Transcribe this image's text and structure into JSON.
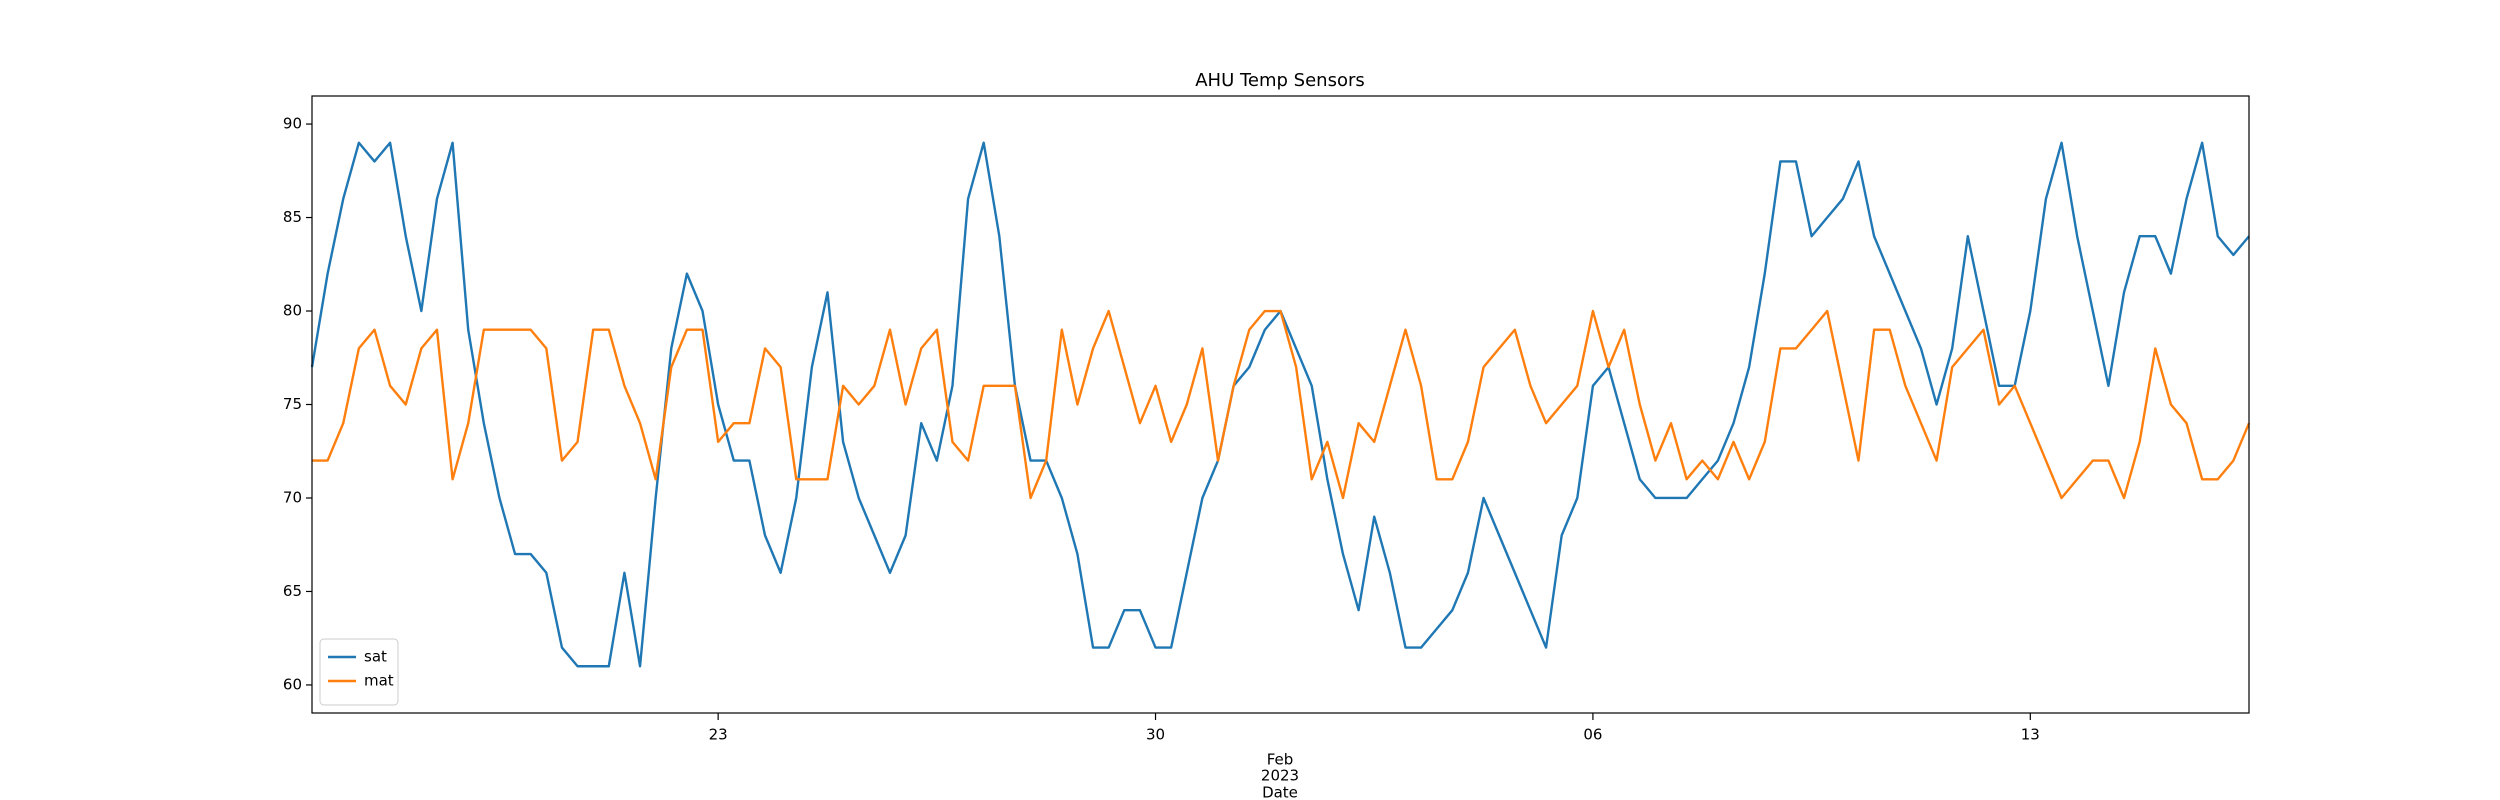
{
  "chart_data": {
    "type": "line",
    "title": "AHU Temp Sensors",
    "xlabel": "Date",
    "x_offset_label": [
      "Feb",
      "2023"
    ],
    "x": [
      "2023-01-16 12:00",
      "2023-01-16 18:00",
      "2023-01-17 00:00",
      "2023-01-17 06:00",
      "2023-01-17 12:00",
      "2023-01-17 18:00",
      "2023-01-18 00:00",
      "2023-01-18 06:00",
      "2023-01-18 12:00",
      "2023-01-18 18:00",
      "2023-01-19 00:00",
      "2023-01-19 06:00",
      "2023-01-19 12:00",
      "2023-01-19 18:00",
      "2023-01-20 00:00",
      "2023-01-20 06:00",
      "2023-01-20 12:00",
      "2023-01-20 18:00",
      "2023-01-21 00:00",
      "2023-01-21 06:00",
      "2023-01-21 12:00",
      "2023-01-21 18:00",
      "2023-01-22 00:00",
      "2023-01-22 06:00",
      "2023-01-22 12:00",
      "2023-01-22 18:00",
      "2023-01-23 00:00",
      "2023-01-23 06:00",
      "2023-01-23 12:00",
      "2023-01-23 18:00",
      "2023-01-24 00:00",
      "2023-01-24 06:00",
      "2023-01-24 12:00",
      "2023-01-24 18:00",
      "2023-01-25 00:00",
      "2023-01-25 06:00",
      "2023-01-25 12:00",
      "2023-01-25 18:00",
      "2023-01-26 00:00",
      "2023-01-26 06:00",
      "2023-01-26 12:00",
      "2023-01-26 18:00",
      "2023-01-27 00:00",
      "2023-01-27 06:00",
      "2023-01-27 12:00",
      "2023-01-27 18:00",
      "2023-01-28 00:00",
      "2023-01-28 06:00",
      "2023-01-28 12:00",
      "2023-01-28 18:00",
      "2023-01-29 00:00",
      "2023-01-29 06:00",
      "2023-01-29 12:00",
      "2023-01-29 18:00",
      "2023-01-30 00:00",
      "2023-01-30 06:00",
      "2023-01-30 12:00",
      "2023-01-30 18:00",
      "2023-01-31 00:00",
      "2023-01-31 06:00",
      "2023-01-31 12:00",
      "2023-01-31 18:00",
      "2023-02-01 00:00",
      "2023-02-01 06:00",
      "2023-02-01 12:00",
      "2023-02-01 18:00",
      "2023-02-02 00:00",
      "2023-02-02 06:00",
      "2023-02-02 12:00",
      "2023-02-02 18:00",
      "2023-02-03 00:00",
      "2023-02-03 06:00",
      "2023-02-03 12:00",
      "2023-02-03 18:00",
      "2023-02-04 00:00",
      "2023-02-04 06:00",
      "2023-02-04 12:00",
      "2023-02-04 18:00",
      "2023-02-05 00:00",
      "2023-02-05 06:00",
      "2023-02-05 12:00",
      "2023-02-05 18:00",
      "2023-02-06 00:00",
      "2023-02-06 06:00",
      "2023-02-06 12:00",
      "2023-02-06 18:00",
      "2023-02-07 00:00",
      "2023-02-07 06:00",
      "2023-02-07 12:00",
      "2023-02-07 18:00",
      "2023-02-08 00:00",
      "2023-02-08 06:00",
      "2023-02-08 12:00",
      "2023-02-08 18:00",
      "2023-02-09 00:00",
      "2023-02-09 06:00",
      "2023-02-09 12:00",
      "2023-02-09 18:00",
      "2023-02-10 00:00",
      "2023-02-10 06:00",
      "2023-02-10 12:00",
      "2023-02-10 18:00",
      "2023-02-11 00:00",
      "2023-02-11 06:00",
      "2023-02-11 12:00",
      "2023-02-11 18:00",
      "2023-02-12 00:00",
      "2023-02-12 06:00",
      "2023-02-12 12:00",
      "2023-02-12 18:00",
      "2023-02-13 00:00",
      "2023-02-13 06:00",
      "2023-02-13 12:00",
      "2023-02-13 18:00",
      "2023-02-14 00:00",
      "2023-02-14 06:00",
      "2023-02-14 12:00",
      "2023-02-14 18:00",
      "2023-02-15 00:00",
      "2023-02-15 06:00",
      "2023-02-15 12:00",
      "2023-02-15 18:00",
      "2023-02-16 00:00",
      "2023-02-16 06:00",
      "2023-02-16 12:00"
    ],
    "series": [
      {
        "name": "sat",
        "color": "#1f77b4",
        "values": [
          77,
          82,
          86,
          89,
          88,
          89,
          84,
          80,
          86,
          89,
          79,
          74,
          70,
          67,
          67,
          66,
          62,
          61,
          61,
          61,
          66,
          61,
          70,
          78,
          82,
          80,
          75,
          72,
          72,
          68,
          66,
          70,
          77,
          81,
          73,
          70,
          68,
          66,
          68,
          74,
          72,
          76,
          86,
          89,
          84,
          76,
          72,
          72,
          70,
          67,
          62,
          62,
          64,
          64,
          62,
          62,
          66,
          70,
          72,
          76,
          77,
          79,
          80,
          78,
          76,
          71,
          67,
          64,
          69,
          66,
          62,
          62,
          63,
          64,
          66,
          70,
          68,
          66,
          64,
          62,
          68,
          70,
          76,
          77,
          74,
          71,
          70,
          70,
          70,
          71,
          72,
          74,
          77,
          82,
          88,
          88,
          84,
          85,
          86,
          88,
          84,
          82,
          80,
          78,
          75,
          78,
          84,
          80,
          76,
          76,
          80,
          86,
          89,
          84,
          80,
          76,
          81,
          84,
          84,
          82,
          86,
          89,
          84,
          83,
          84
        ]
      },
      {
        "name": "mat",
        "color": "#ff7f0e",
        "values": [
          72,
          72,
          74,
          78,
          79,
          76,
          75,
          78,
          79,
          71,
          74,
          79,
          79,
          79,
          79,
          78,
          72,
          73,
          79,
          79,
          76,
          74,
          71,
          77,
          79,
          79,
          73,
          74,
          74,
          78,
          77,
          71,
          71,
          71,
          76,
          75,
          76,
          79,
          75,
          78,
          79,
          73,
          72,
          76,
          76,
          76,
          70,
          72,
          79,
          75,
          78,
          80,
          77,
          74,
          76,
          73,
          75,
          78,
          72,
          76,
          79,
          80,
          80,
          77,
          71,
          73,
          70,
          74,
          73,
          76,
          79,
          76,
          71,
          71,
          73,
          77,
          78,
          79,
          76,
          74,
          75,
          76,
          80,
          77,
          79,
          75,
          72,
          74,
          71,
          72,
          71,
          73,
          71,
          73,
          78,
          78,
          79,
          80,
          76,
          72,
          79,
          79,
          76,
          74,
          72,
          77,
          78,
          79,
          75,
          76,
          74,
          72,
          70,
          71,
          72,
          72,
          70,
          73,
          78,
          75,
          74,
          71,
          71,
          72,
          74
        ]
      }
    ],
    "xlim": [
      "2023-01-16 12:00",
      "2023-02-16 12:00"
    ],
    "xticks": [
      {
        "value": "2023-01-23 00:00",
        "label": "23"
      },
      {
        "value": "2023-01-30 00:00",
        "label": "30"
      },
      {
        "value": "2023-02-06 00:00",
        "label": "06"
      },
      {
        "value": "2023-02-13 00:00",
        "label": "13"
      }
    ],
    "ylim": [
      58.5,
      91.5
    ],
    "yticks": [
      60,
      65,
      70,
      75,
      80,
      85,
      90
    ],
    "grid": false,
    "legend": "lower left"
  }
}
